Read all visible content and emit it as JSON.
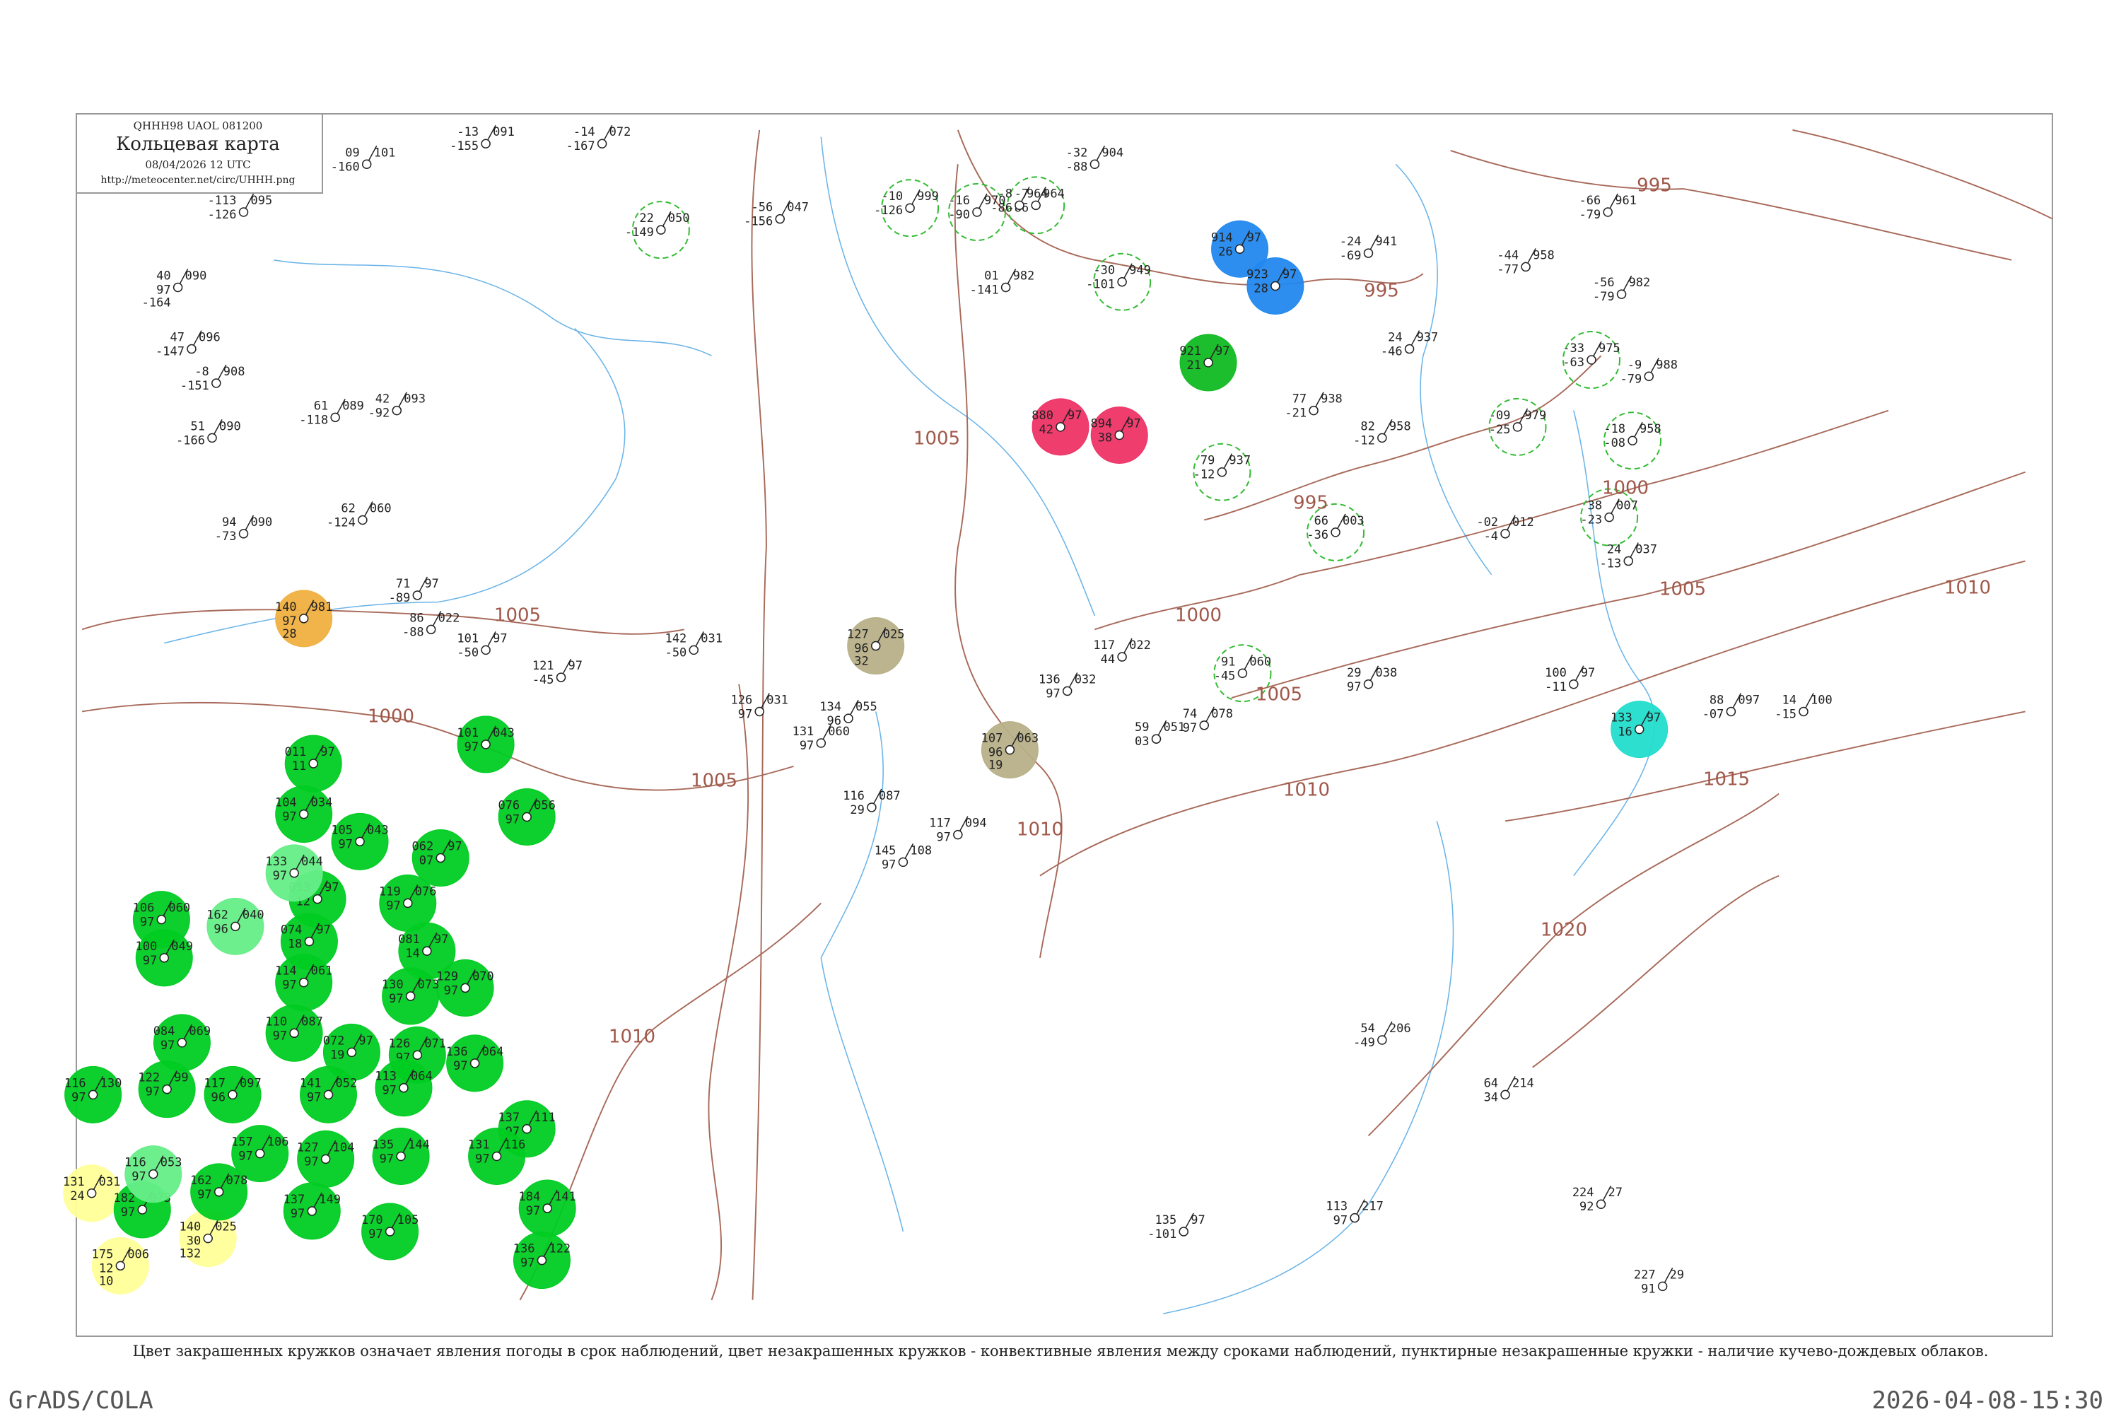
{
  "header": {
    "code": "QHHH98  UAOL  081200",
    "title": "Кольцевая карта",
    "datetime": "08/04/2026 12 UTC",
    "url": "http://meteocenter.net/circ/UHHH.png"
  },
  "caption": "Цвет закрашенных кружков означает явления погоды в срок наблюдений, цвет незакрашенных кружков - конвективные явления между сроками наблюдений, пунктирные незакрашенные кружки - наличие кучево-дождевых облаков.",
  "footer": {
    "left": "GrADS/COLA",
    "right": "2026-04-08-15:30"
  },
  "isobars": [
    "995",
    "995",
    "995",
    "1000",
    "1000",
    "1000",
    "1005",
    "1005",
    "1005",
    "1005",
    "1005",
    "1010",
    "1010",
    "1010",
    "1010",
    "1015",
    "1020"
  ],
  "stations": [
    {
      "values": [
        "140",
        "981",
        "97",
        "28"
      ],
      "fill": "#f0b040"
    },
    {
      "values": [
        "914",
        "97",
        "26"
      ],
      "fill": "#2288ee"
    },
    {
      "values": [
        "923",
        "97",
        "28"
      ],
      "fill": "#2288ee"
    },
    {
      "values": [
        "921",
        "97",
        "21"
      ],
      "fill": "#11bb22"
    },
    {
      "values": [
        "880",
        "97",
        "42"
      ],
      "fill": "#ee3366"
    },
    {
      "values": [
        "894",
        "97",
        "38"
      ],
      "fill": "#ee3366"
    },
    {
      "values": [
        "127",
        "025",
        "96",
        "32"
      ],
      "fill": "#b7b088"
    },
    {
      "values": [
        "107",
        "063",
        "96",
        "19"
      ],
      "fill": "#b7b088"
    },
    {
      "values": [
        "133",
        "97",
        "16"
      ],
      "fill": "#22ddcc"
    },
    {
      "values": [
        "131",
        "031",
        "24"
      ],
      "fill": "#ffff99"
    },
    {
      "values": [
        "140",
        "025",
        "30",
        "132"
      ],
      "fill": "#ffff99"
    },
    {
      "values": [
        "175",
        "006",
        "12",
        "10"
      ],
      "fill": "#ffff99"
    },
    {
      "values": [
        "011",
        "97",
        "11"
      ],
      "fill": "#00cc22"
    },
    {
      "values": [
        "101",
        "043",
        "97"
      ],
      "fill": "#00cc22"
    },
    {
      "values": [
        "104",
        "034",
        "97"
      ],
      "fill": "#00cc22"
    },
    {
      "values": [
        "105",
        "043",
        "97"
      ],
      "fill": "#00cc22"
    },
    {
      "values": [
        "062",
        "97",
        "07"
      ],
      "fill": "#00cc22"
    },
    {
      "values": [
        "076",
        "056",
        "97"
      ],
      "fill": "#00cc22"
    },
    {
      "values": [
        "053",
        "97",
        "12"
      ],
      "fill": "#00cc22"
    },
    {
      "values": [
        "106",
        "060",
        "97"
      ],
      "fill": "#00cc22"
    },
    {
      "values": [
        "074",
        "97",
        "18"
      ],
      "fill": "#00cc22"
    },
    {
      "values": [
        "119",
        "076",
        "97"
      ],
      "fill": "#00cc22"
    },
    {
      "values": [
        "100",
        "049",
        "97"
      ],
      "fill": "#00cc22"
    },
    {
      "values": [
        "081",
        "97",
        "14"
      ],
      "fill": "#00cc22"
    },
    {
      "values": [
        "114",
        "061",
        "97"
      ],
      "fill": "#00cc22"
    },
    {
      "values": [
        "129",
        "070",
        "97"
      ],
      "fill": "#00cc22"
    },
    {
      "values": [
        "130",
        "073",
        "97"
      ],
      "fill": "#00cc22"
    },
    {
      "values": [
        "084",
        "069",
        "97"
      ],
      "fill": "#00cc22"
    },
    {
      "values": [
        "110",
        "087",
        "97"
      ],
      "fill": "#00cc22"
    },
    {
      "values": [
        "072",
        "97",
        "19"
      ],
      "fill": "#00cc22"
    },
    {
      "values": [
        "126",
        "071",
        "97"
      ],
      "fill": "#00cc22"
    },
    {
      "values": [
        "136",
        "064",
        "97"
      ],
      "fill": "#00cc22"
    },
    {
      "values": [
        "122",
        "99",
        "97"
      ],
      "fill": "#00cc22"
    },
    {
      "values": [
        "117",
        "097",
        "96"
      ],
      "fill": "#00cc22"
    },
    {
      "values": [
        "141",
        "052",
        "97"
      ],
      "fill": "#00cc22"
    },
    {
      "values": [
        "113",
        "064",
        "97"
      ],
      "fill": "#00cc22"
    },
    {
      "values": [
        "116",
        "130",
        "97"
      ],
      "fill": "#00cc22"
    },
    {
      "values": [
        "157",
        "106",
        "97"
      ],
      "fill": "#00cc22"
    },
    {
      "values": [
        "127",
        "104",
        "97"
      ],
      "fill": "#00cc22"
    },
    {
      "values": [
        "135",
        "144",
        "97"
      ],
      "fill": "#00cc22"
    },
    {
      "values": [
        "137",
        "111",
        "97"
      ],
      "fill": "#00cc22"
    },
    {
      "values": [
        "131",
        "116",
        "97"
      ],
      "fill": "#00cc22"
    },
    {
      "values": [
        "182",
        "073",
        "97"
      ],
      "fill": "#00cc22"
    },
    {
      "values": [
        "162",
        "078",
        "97"
      ],
      "fill": "#00cc22"
    },
    {
      "values": [
        "137",
        "149",
        "97"
      ],
      "fill": "#00cc22"
    },
    {
      "values": [
        "170",
        "105",
        "97"
      ],
      "fill": "#00cc22"
    },
    {
      "values": [
        "184",
        "141",
        "97"
      ],
      "fill": "#00cc22"
    },
    {
      "values": [
        "136",
        "122",
        "97"
      ],
      "fill": "#00cc22"
    },
    {
      "values": [
        "133",
        "044",
        "97"
      ],
      "fill": "#66ee88"
    },
    {
      "values": [
        "162",
        "040",
        "96"
      ],
      "fill": "#66ee88"
    },
    {
      "values": [
        "116",
        "053",
        "97"
      ],
      "fill": "#66ee88"
    },
    {
      "values": [
        "22",
        "050",
        "-149"
      ],
      "ring": "#33bb33"
    },
    {
      "values": [
        "-10",
        "999",
        "-126"
      ],
      "ring": "#33bb33"
    },
    {
      "values": [
        "-16",
        "970",
        "-90"
      ],
      "ring": "#33bb33"
    },
    {
      "values": [
        "-7",
        "964",
        "-86"
      ],
      "ring": "#33bb33"
    },
    {
      "values": [
        "-30",
        "949",
        "-101"
      ],
      "ring": "#33bb33"
    },
    {
      "values": [
        "-33",
        "975",
        "-63"
      ],
      "ring": "#33bb33"
    },
    {
      "values": [
        "-18",
        "958",
        "-08"
      ],
      "ring": "#33bb33"
    },
    {
      "values": [
        "-09",
        "979",
        "-25"
      ],
      "ring": "#33bb33"
    },
    {
      "values": [
        "79",
        "937",
        "-12"
      ],
      "ring": "#33bb33"
    },
    {
      "values": [
        "66",
        "003",
        "-36"
      ],
      "ring": "#33bb33"
    },
    {
      "values": [
        "38",
        "007",
        "-23"
      ],
      "ring": "#33bb33"
    },
    {
      "values": [
        "91",
        "060",
        "-45"
      ],
      "ring": "#33bb33"
    },
    {
      "values": [
        "09",
        "101",
        "-160"
      ]
    },
    {
      "values": [
        "-13",
        "091",
        "-155"
      ]
    },
    {
      "values": [
        "-113",
        "095",
        "-126"
      ]
    },
    {
      "values": [
        "40",
        "090",
        "97",
        "-164"
      ]
    },
    {
      "values": [
        "47",
        "096",
        "-147"
      ]
    },
    {
      "values": [
        "-8",
        "908",
        "-151"
      ]
    },
    {
      "values": [
        "51",
        "090",
        "-166"
      ]
    },
    {
      "values": [
        "94",
        "090",
        "-73"
      ]
    },
    {
      "values": [
        "61",
        "089",
        "-118"
      ]
    },
    {
      "values": [
        "42",
        "093",
        "-92"
      ]
    },
    {
      "values": [
        "62",
        "060",
        "-124"
      ]
    },
    {
      "values": [
        "71",
        "97",
        "-89"
      ]
    },
    {
      "values": [
        "86",
        "022",
        "-88"
      ]
    },
    {
      "values": [
        "101",
        "97",
        "-50"
      ]
    },
    {
      "values": [
        "121",
        "97",
        "-45"
      ]
    },
    {
      "values": [
        "142",
        "031",
        "-50"
      ]
    },
    {
      "values": [
        "126",
        "031",
        "97"
      ]
    },
    {
      "values": [
        "134",
        "055",
        "96"
      ]
    },
    {
      "values": [
        "131",
        "060",
        "97"
      ]
    },
    {
      "values": [
        "116",
        "087",
        "29"
      ]
    },
    {
      "values": [
        "117",
        "094",
        "97"
      ]
    },
    {
      "values": [
        "145",
        "108",
        "97"
      ]
    },
    {
      "values": [
        "117",
        "022",
        "44"
      ]
    },
    {
      "values": [
        "136",
        "032",
        "97"
      ]
    },
    {
      "values": [
        "59",
        "051",
        "03"
      ]
    },
    {
      "values": [
        "74",
        "078",
        "97"
      ]
    },
    {
      "values": [
        "29",
        "038",
        "97"
      ]
    },
    {
      "values": [
        "100",
        "97",
        "-11"
      ]
    },
    {
      "values": [
        "88",
        "097",
        "-07"
      ]
    },
    {
      "values": [
        "14",
        "100",
        "-15"
      ]
    },
    {
      "values": [
        "77",
        "938",
        "-21"
      ]
    },
    {
      "values": [
        "82",
        "958",
        "-12"
      ]
    },
    {
      "values": [
        "24",
        "937",
        "-46"
      ]
    },
    {
      "values": [
        "-24",
        "941",
        "-69"
      ]
    },
    {
      "values": [
        "-44",
        "958",
        "-77"
      ]
    },
    {
      "values": [
        "-56",
        "982",
        "-79"
      ]
    },
    {
      "values": [
        "-66",
        "961",
        "-79"
      ]
    },
    {
      "values": [
        "-9",
        "988",
        "-79"
      ]
    },
    {
      "values": [
        "-32",
        "904",
        "-88"
      ]
    },
    {
      "values": [
        "-8",
        "964",
        "-86"
      ]
    },
    {
      "values": [
        "01",
        "982",
        "-141"
      ]
    },
    {
      "values": [
        "-02",
        "012",
        "-4"
      ]
    },
    {
      "values": [
        "24",
        "037",
        "-13"
      ]
    },
    {
      "values": [
        "54",
        "206",
        "-49"
      ]
    },
    {
      "values": [
        "64",
        "214",
        "34"
      ]
    },
    {
      "values": [
        "224",
        "27",
        "92"
      ]
    },
    {
      "values": [
        "227",
        "29",
        "91"
      ]
    },
    {
      "values": [
        "113",
        "217",
        "97"
      ]
    },
    {
      "values": [
        "135",
        "97",
        "-101"
      ]
    },
    {
      "values": [
        "-56",
        "047",
        "-156"
      ]
    },
    {
      "values": [
        "-14",
        "072",
        "-167"
      ]
    }
  ]
}
